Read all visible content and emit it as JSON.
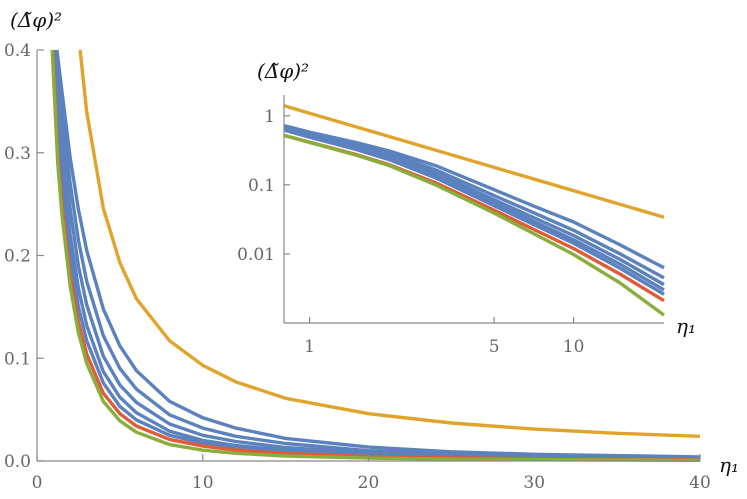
{
  "chart_data": [
    {
      "id": "main",
      "type": "line",
      "title": "",
      "xlabel": "η₁",
      "ylabel": "(Δ̃φ)²",
      "xlim": [
        0,
        40
      ],
      "ylim": [
        0,
        0.4
      ],
      "x_ticks": [
        0,
        10,
        20,
        30,
        40
      ],
      "x_tick_labels": [
        "0",
        "10",
        "20",
        "30",
        "40"
      ],
      "y_ticks": [
        0,
        0.1,
        0.2,
        0.3,
        0.4
      ],
      "y_tick_labels": [
        "0.0",
        "0.1",
        "0.2",
        "0.3",
        "0.4"
      ],
      "grid": false,
      "series": [
        {
          "name": "orange",
          "color": "#e0a42c",
          "x": [
            2.6,
            3,
            4,
            5,
            6,
            8,
            10,
            12,
            15,
            20,
            25,
            30,
            35,
            40
          ],
          "y": [
            0.4,
            0.34,
            0.246,
            0.193,
            0.158,
            0.117,
            0.093,
            0.077,
            0.061,
            0.046,
            0.037,
            0.031,
            0.027,
            0.024
          ]
        },
        {
          "name": "blue-1",
          "color": "#5b82bf",
          "x": [
            1.2,
            1.5,
            2,
            2.5,
            3,
            4,
            5,
            6,
            8,
            10,
            12,
            15,
            20,
            25,
            30,
            40
          ],
          "y": [
            0.4,
            0.36,
            0.295,
            0.245,
            0.205,
            0.148,
            0.112,
            0.088,
            0.058,
            0.042,
            0.032,
            0.022,
            0.0135,
            0.009,
            0.0065,
            0.004
          ]
        },
        {
          "name": "blue-2",
          "color": "#5b82bf",
          "x": [
            1.15,
            1.5,
            2,
            2.5,
            3,
            4,
            5,
            6,
            8,
            10,
            12,
            15,
            20,
            25,
            30,
            40
          ],
          "y": [
            0.4,
            0.34,
            0.27,
            0.215,
            0.175,
            0.122,
            0.09,
            0.07,
            0.045,
            0.032,
            0.024,
            0.017,
            0.01,
            0.0068,
            0.005,
            0.003
          ]
        },
        {
          "name": "blue-3",
          "color": "#5b82bf",
          "x": [
            1.1,
            1.5,
            2,
            2.5,
            3,
            4,
            5,
            6,
            8,
            10,
            12,
            15,
            20,
            25,
            30,
            40
          ],
          "y": [
            0.4,
            0.315,
            0.245,
            0.19,
            0.152,
            0.102,
            0.074,
            0.057,
            0.036,
            0.025,
            0.019,
            0.013,
            0.008,
            0.0054,
            0.004,
            0.0024
          ]
        },
        {
          "name": "blue-4",
          "color": "#5b82bf",
          "x": [
            1.05,
            1.5,
            2,
            2.5,
            3,
            4,
            5,
            6,
            8,
            10,
            12,
            15,
            20,
            25,
            30,
            40
          ],
          "y": [
            0.4,
            0.29,
            0.22,
            0.168,
            0.132,
            0.087,
            0.062,
            0.047,
            0.029,
            0.02,
            0.015,
            0.0105,
            0.0065,
            0.0045,
            0.0033,
            0.002
          ]
        },
        {
          "name": "blue-5",
          "color": "#5b82bf",
          "x": [
            1.0,
            1.5,
            2,
            2.5,
            3,
            4,
            5,
            6,
            8,
            10,
            12,
            15,
            20,
            25,
            30,
            40
          ],
          "y": [
            0.4,
            0.27,
            0.2,
            0.15,
            0.117,
            0.076,
            0.053,
            0.04,
            0.025,
            0.0175,
            0.013,
            0.009,
            0.0056,
            0.0038,
            0.0028,
            0.0017
          ]
        },
        {
          "name": "red",
          "color": "#e05b37",
          "x": [
            0.95,
            1.25,
            1.5,
            2,
            2.5,
            3,
            4,
            5,
            6,
            8,
            10,
            12,
            15,
            20,
            25,
            30,
            40
          ],
          "y": [
            0.4,
            0.3,
            0.25,
            0.18,
            0.135,
            0.104,
            0.066,
            0.046,
            0.034,
            0.021,
            0.0145,
            0.0107,
            0.0073,
            0.0045,
            0.0031,
            0.0023,
            0.0014
          ]
        },
        {
          "name": "green",
          "color": "#8aae3c",
          "x": [
            0.92,
            1.25,
            1.5,
            2,
            2.5,
            3,
            4,
            5,
            6,
            8,
            10,
            12,
            15,
            20,
            25,
            30,
            40
          ],
          "y": [
            0.4,
            0.29,
            0.24,
            0.17,
            0.125,
            0.095,
            0.058,
            0.039,
            0.028,
            0.016,
            0.0105,
            0.0075,
            0.0049,
            0.0028,
            0.0018,
            0.0013,
            0.0007
          ]
        }
      ]
    },
    {
      "id": "inset",
      "type": "line",
      "scale": "log-log",
      "title": "",
      "xlabel": "η₁",
      "ylabel": "(Δ̃φ)²",
      "xlim": [
        0.8,
        22
      ],
      "ylim": [
        0.001,
        2
      ],
      "x_ticks": [
        1,
        5,
        10
      ],
      "x_tick_labels": [
        "1",
        "5",
        "10"
      ],
      "y_ticks": [
        1,
        0.1,
        0.01
      ],
      "y_tick_labels": [
        "1",
        "0.1",
        "0.01"
      ],
      "grid": false,
      "series": [
        {
          "name": "orange",
          "color": "#e0a42c",
          "x": [
            0.8,
            22
          ],
          "y": [
            1.4,
            0.034
          ]
        },
        {
          "name": "blue-1",
          "color": "#5b82bf",
          "x": [
            0.8,
            1,
            1.5,
            2,
            3,
            5,
            7,
            10,
            15,
            22
          ],
          "y": [
            0.72,
            0.58,
            0.41,
            0.31,
            0.19,
            0.085,
            0.05,
            0.029,
            0.0135,
            0.0063
          ]
        },
        {
          "name": "blue-2",
          "color": "#5b82bf",
          "x": [
            0.8,
            1,
            1.5,
            2,
            3,
            5,
            7,
            10,
            15,
            22
          ],
          "y": [
            0.69,
            0.555,
            0.385,
            0.285,
            0.165,
            0.07,
            0.04,
            0.022,
            0.01,
            0.0045
          ]
        },
        {
          "name": "blue-3",
          "color": "#5b82bf",
          "x": [
            0.8,
            1,
            1.5,
            2,
            3,
            5,
            7,
            10,
            15,
            22
          ],
          "y": [
            0.66,
            0.53,
            0.36,
            0.26,
            0.148,
            0.061,
            0.034,
            0.0185,
            0.0083,
            0.0036
          ]
        },
        {
          "name": "blue-4",
          "color": "#5b82bf",
          "x": [
            0.8,
            1,
            1.5,
            2,
            3,
            5,
            7,
            10,
            15,
            22
          ],
          "y": [
            0.64,
            0.51,
            0.34,
            0.245,
            0.135,
            0.055,
            0.03,
            0.016,
            0.0071,
            0.003
          ]
        },
        {
          "name": "blue-5",
          "color": "#5b82bf",
          "x": [
            0.8,
            1,
            1.5,
            2,
            3,
            5,
            7,
            10,
            15,
            22
          ],
          "y": [
            0.62,
            0.49,
            0.325,
            0.232,
            0.126,
            0.05,
            0.027,
            0.0143,
            0.0062,
            0.0026
          ]
        },
        {
          "name": "red",
          "color": "#e05b37",
          "x": [
            0.8,
            1,
            1.5,
            2,
            3,
            5,
            7,
            10,
            15,
            22
          ],
          "y": [
            0.52,
            0.415,
            0.275,
            0.196,
            0.107,
            0.043,
            0.023,
            0.012,
            0.0051,
            0.0021
          ]
        },
        {
          "name": "green",
          "color": "#8aae3c",
          "x": [
            0.8,
            1,
            1.5,
            2,
            3,
            5,
            7,
            10,
            15,
            22
          ],
          "y": [
            0.52,
            0.41,
            0.27,
            0.19,
            0.1,
            0.039,
            0.02,
            0.0098,
            0.0038,
            0.0013
          ]
        }
      ]
    }
  ]
}
